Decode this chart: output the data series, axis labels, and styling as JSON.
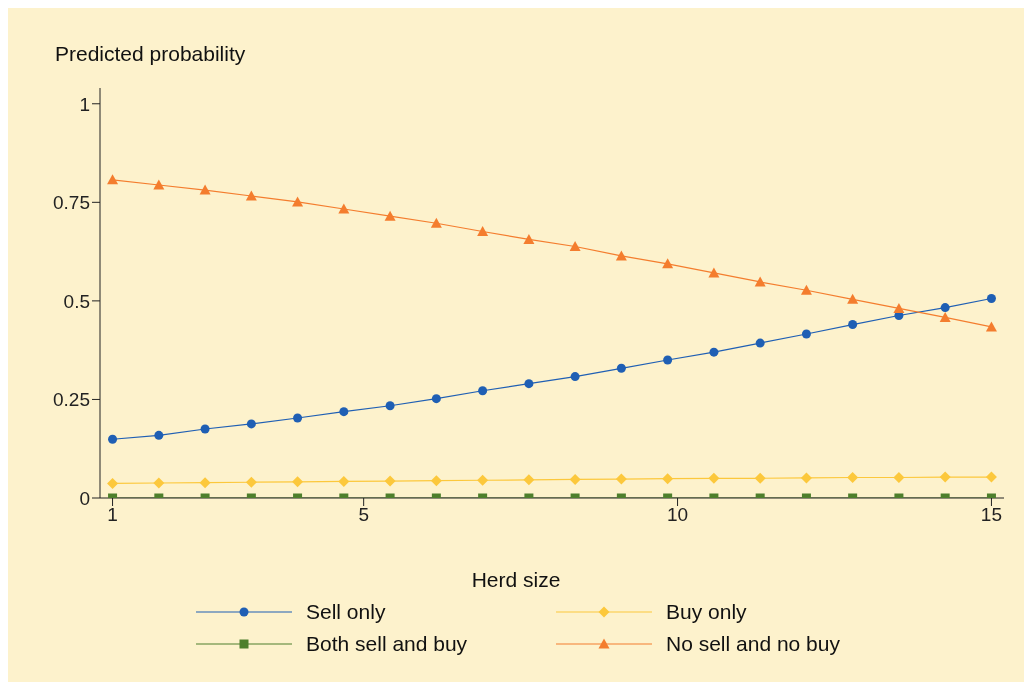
{
  "chart_data": {
    "type": "line",
    "ylabel": "Predicted probability",
    "xlabel": "Herd size",
    "x": [
      1,
      1.737,
      2.474,
      3.211,
      3.947,
      4.684,
      5.421,
      6.158,
      6.895,
      7.632,
      8.368,
      9.105,
      9.842,
      10.579,
      11.316,
      12.053,
      12.789,
      13.526,
      14.263,
      15
    ],
    "xlim": [
      0.8,
      15.2
    ],
    "xticks": [
      1,
      5,
      10,
      15
    ],
    "ylim": [
      0,
      1.04
    ],
    "yticks": [
      0,
      0.25,
      0.5,
      0.75,
      1
    ],
    "grid": false,
    "legend": "bottom",
    "series": [
      {
        "name": "Sell only",
        "color": "#1f5fb4",
        "marker": "circle",
        "values": [
          0.149,
          0.159,
          0.175,
          0.188,
          0.203,
          0.219,
          0.234,
          0.252,
          0.272,
          0.29,
          0.308,
          0.329,
          0.35,
          0.37,
          0.393,
          0.416,
          0.44,
          0.463,
          0.483,
          0.506
        ]
      },
      {
        "name": "Buy only",
        "color": "#fcc83c",
        "marker": "diamond",
        "values": [
          0.037,
          0.038,
          0.039,
          0.04,
          0.041,
          0.042,
          0.043,
          0.044,
          0.045,
          0.046,
          0.047,
          0.048,
          0.049,
          0.05,
          0.05,
          0.051,
          0.052,
          0.052,
          0.053,
          0.053
        ]
      },
      {
        "name": "Both sell and buy",
        "color": "#4e7f2c",
        "marker": "square",
        "values": [
          0,
          0,
          0,
          0,
          0,
          0,
          0,
          0,
          0,
          0,
          0,
          0,
          0,
          0,
          0,
          0,
          0,
          0,
          0,
          0
        ]
      },
      {
        "name": "No sell and no buy",
        "color": "#f47d2e",
        "marker": "triangle",
        "values": [
          0.807,
          0.794,
          0.781,
          0.766,
          0.751,
          0.733,
          0.715,
          0.697,
          0.676,
          0.656,
          0.638,
          0.614,
          0.594,
          0.571,
          0.548,
          0.527,
          0.504,
          0.481,
          0.458,
          0.434
        ]
      }
    ]
  }
}
